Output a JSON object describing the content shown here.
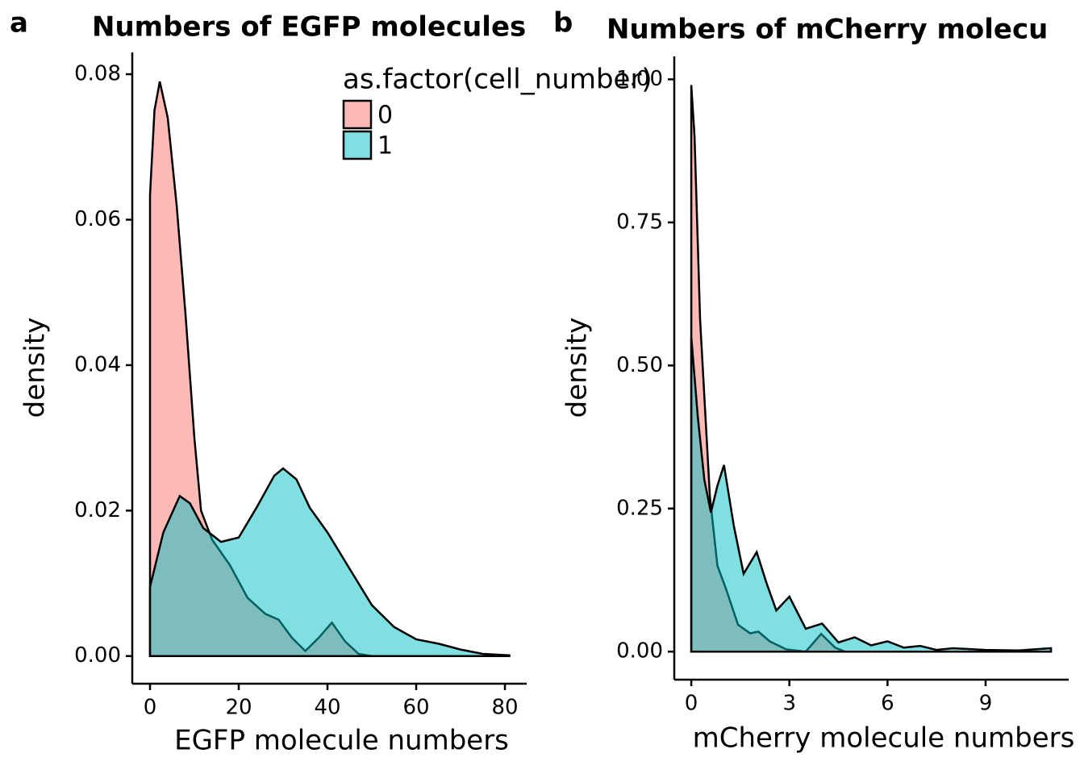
{
  "chart_data": [
    {
      "type": "area",
      "tag": "a",
      "title": "Numbers of EGFP molecules",
      "xlabel": "EGFP molecule numbers",
      "ylabel": "density",
      "legend_title": "as.factor(cell_number)",
      "xlim": [
        -4,
        84.9
      ],
      "ylim": [
        -0.0038,
        0.083
      ],
      "xticks": [
        0,
        20,
        40,
        60,
        80
      ],
      "yticks": [
        {
          "value": 0,
          "label": "0.00"
        },
        {
          "value": 0.02,
          "label": "0.02"
        },
        {
          "value": 0.04,
          "label": "0.04"
        },
        {
          "value": 0.06,
          "label": "0.06"
        },
        {
          "value": 0.08,
          "label": "0.08"
        }
      ],
      "series": [
        {
          "name": "0",
          "color": "#F8766D",
          "x": [
            0,
            1,
            2.2,
            4,
            6,
            8,
            10,
            11.5,
            14,
            18,
            22,
            26,
            29,
            32,
            35,
            38,
            41,
            44,
            47,
            50
          ],
          "values": [
            0.0634,
            0.075,
            0.079,
            0.074,
            0.062,
            0.047,
            0.03,
            0.02,
            0.016,
            0.0125,
            0.008,
            0.0058,
            0.005,
            0.0025,
            0.0007,
            0.0025,
            0.0046,
            0.002,
            0.0003,
            0
          ]
        },
        {
          "name": "1",
          "color": "#00BFC4",
          "x": [
            0,
            3,
            6.7,
            9,
            12,
            16,
            20,
            24,
            28,
            30,
            33,
            36,
            40,
            45,
            50,
            55,
            60,
            65,
            70,
            75,
            81
          ],
          "values": [
            0.0095,
            0.017,
            0.022,
            0.021,
            0.0176,
            0.0157,
            0.0163,
            0.0204,
            0.0248,
            0.0258,
            0.0243,
            0.0204,
            0.017,
            0.012,
            0.007,
            0.004,
            0.0023,
            0.0017,
            0.0009,
            0.0003,
            0.0001
          ]
        }
      ]
    },
    {
      "type": "area",
      "tag": "b",
      "title": "Numbers of mCherry molecu",
      "xlabel": "mCherry molecule numbers",
      "ylabel": "density",
      "xlim": [
        -0.52,
        11.54
      ],
      "ylim": [
        -0.049,
        1.04
      ],
      "xticks": [
        0,
        3,
        6,
        9
      ],
      "yticks": [
        {
          "value": 0,
          "label": "0.00"
        },
        {
          "value": 0.25,
          "label": "0.25"
        },
        {
          "value": 0.5,
          "label": "0.50"
        },
        {
          "value": 0.75,
          "label": "0.75"
        },
        {
          "value": 1,
          "label": "1.00"
        }
      ],
      "series": [
        {
          "name": "0",
          "color": "#F8766D",
          "x": [
            0,
            0.1,
            0.27,
            0.57,
            0.8,
            1.06,
            1.43,
            1.8,
            2.05,
            2.4,
            2.9,
            3.5,
            3.97,
            4.4,
            4.7
          ],
          "values": [
            0.99,
            0.9,
            0.58,
            0.27,
            0.15,
            0.11,
            0.047,
            0.032,
            0.035,
            0.018,
            0.004,
            0,
            0.031,
            0.007,
            0
          ]
        },
        {
          "name": "1",
          "color": "#00BFC4",
          "x": [
            0,
            0.2,
            0.4,
            0.6,
            0.8,
            1,
            1.3,
            1.6,
            2,
            2.3,
            2.6,
            3,
            3.5,
            4,
            4.5,
            5,
            5.5,
            6,
            6.5,
            7,
            7.5,
            8,
            9,
            10,
            11
          ],
          "values": [
            0.55,
            0.41,
            0.3,
            0.243,
            0.29,
            0.326,
            0.22,
            0.136,
            0.174,
            0.12,
            0.072,
            0.096,
            0.04,
            0.049,
            0.016,
            0.025,
            0.011,
            0.018,
            0.007,
            0.01,
            0.003,
            0.006,
            0.003,
            0.002,
            0.006
          ]
        }
      ]
    }
  ]
}
